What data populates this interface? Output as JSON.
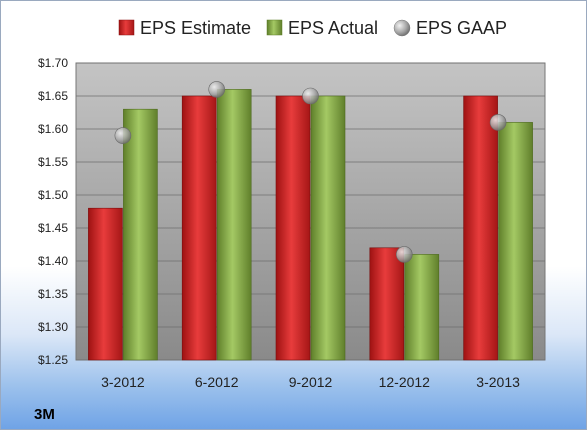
{
  "company_label": "3M",
  "colors": {
    "estimate": "#d42a2a",
    "actual": "#8bb04a",
    "gaap": "#9a9a9a",
    "plot_bg_top": "#b7b7b7",
    "plot_bg_bottom": "#8c8c8c"
  },
  "chart_data": {
    "type": "bar",
    "categories": [
      "3-2012",
      "6-2012",
      "9-2012",
      "12-2012",
      "3-2013"
    ],
    "series": [
      {
        "name": "EPS Estimate",
        "kind": "bar",
        "color": "#d42a2a",
        "values": [
          1.48,
          1.65,
          1.65,
          1.42,
          1.65
        ]
      },
      {
        "name": "EPS Actual",
        "kind": "bar",
        "color": "#8bb04a",
        "values": [
          1.63,
          1.66,
          1.65,
          1.41,
          1.61
        ]
      },
      {
        "name": "EPS GAAP",
        "kind": "marker",
        "color": "#9a9a9a",
        "values": [
          1.59,
          1.66,
          1.65,
          1.41,
          1.61
        ]
      }
    ],
    "ylim": [
      1.25,
      1.7
    ],
    "yticks": [
      1.25,
      1.3,
      1.35,
      1.4,
      1.45,
      1.5,
      1.55,
      1.6,
      1.65,
      1.7
    ],
    "ytick_labels": [
      "$1.25",
      "$1.30",
      "$1.35",
      "$1.40",
      "$1.45",
      "$1.50",
      "$1.55",
      "$1.60",
      "$1.65",
      "$1.70"
    ],
    "grid": true,
    "legend_position": "top"
  }
}
